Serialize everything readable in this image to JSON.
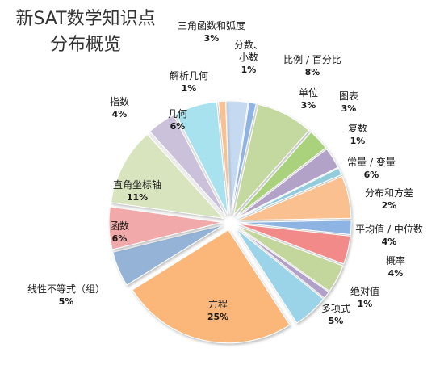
{
  "chart_data": {
    "type": "pie",
    "title": [
      "新SAT数学知识点",
      "分布概览"
    ],
    "slices": [
      {
        "label": "三角函数和弧度",
        "value": 3,
        "value_label": "3%",
        "color": "#c5d9f1"
      },
      {
        "label": "分数、小数",
        "value": 1,
        "value_label": "1%",
        "color": "#8db4e2"
      },
      {
        "label": "比例 / 百分比",
        "value": 8,
        "value_label": "8%",
        "color": "#c4d9a0"
      },
      {
        "label": "单位",
        "value": 3,
        "value_label": "3%",
        "color": "#aad27c"
      },
      {
        "label": "图表",
        "value": 3,
        "value_label": "3%",
        "color": "#b3a2c7"
      },
      {
        "label": "复数",
        "value": 1,
        "value_label": "1%",
        "color": "#93cddd"
      },
      {
        "label": "常量 / 变量",
        "value": 6,
        "value_label": "6%",
        "color": "#fac090"
      },
      {
        "label": "分布和方差",
        "value": 2,
        "value_label": "2%",
        "color": "#8eb4e3"
      },
      {
        "label": "平均值 / 中位数",
        "value": 4,
        "value_label": "4%",
        "color": "#f28a8a"
      },
      {
        "label": "概率",
        "value": 4,
        "value_label": "4%",
        "color": "#c3d69b"
      },
      {
        "label": "绝对值",
        "value": 1,
        "value_label": "1%",
        "color": "#b1a0c7"
      },
      {
        "label": "多项式",
        "value": 5,
        "value_label": "5%",
        "color": "#9bd4e8"
      },
      {
        "label": "方程",
        "value": 25,
        "value_label": "25%",
        "color": "#fbb77a"
      },
      {
        "label": "线性不等式（组）",
        "value": 5,
        "value_label": "5%",
        "color": "#95b3d7"
      },
      {
        "label": "函数",
        "value": 6,
        "value_label": "6%",
        "color": "#f2a9a9"
      },
      {
        "label": "直角坐标轴",
        "value": 11,
        "value_label": "11%",
        "color": "#d7e4bd"
      },
      {
        "label": "指数",
        "value": 4,
        "value_label": "4%",
        "color": "#ccc1da"
      },
      {
        "label": "几何",
        "value": 6,
        "value_label": "6%",
        "color": "#a9e2ef"
      },
      {
        "label": "解析几何",
        "value": 1,
        "value_label": "1%",
        "color": "#fac090"
      }
    ],
    "exploded": true,
    "legend": "none"
  }
}
